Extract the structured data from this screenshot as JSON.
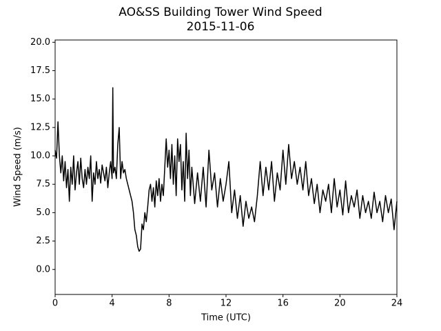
{
  "chart_data": {
    "type": "line",
    "title": "AO&SS Building Tower Wind Speed",
    "subtitle": "2015-11-06",
    "x_label": "Time (UTC)",
    "y_label": "Wind Speed (m/s)",
    "xlim": [
      0,
      24
    ],
    "xticks": [
      0,
      4,
      8,
      12,
      16,
      20,
      24
    ],
    "ylim": [
      -2.2,
      20.2
    ],
    "yticks": [
      {
        "value": 0,
        "label": "0.0"
      },
      2.5,
      {
        "value": 5,
        "label": "5.0"
      },
      7.5,
      {
        "value": 10,
        "label": "10.0"
      },
      12.5,
      {
        "value": 15,
        "label": "15.0"
      },
      17.5,
      {
        "value": 20,
        "label": "20.0"
      }
    ],
    "grid": false,
    "series": [
      {
        "color": "#000000",
        "x": [
          0.0,
          0.1,
          0.2,
          0.3,
          0.4,
          0.5,
          0.6,
          0.7,
          0.8,
          0.9,
          1.0,
          1.1,
          1.2,
          1.3,
          1.4,
          1.5,
          1.6,
          1.7,
          1.8,
          1.9,
          2.0,
          2.1,
          2.2,
          2.3,
          2.4,
          2.5,
          2.6,
          2.7,
          2.8,
          2.9,
          3.0,
          3.1,
          3.2,
          3.3,
          3.4,
          3.5,
          3.6,
          3.7,
          3.8,
          3.9,
          4.0,
          4.05,
          4.1,
          4.2,
          4.3,
          4.4,
          4.5,
          4.6,
          4.7,
          4.8,
          4.9,
          5.0,
          5.1,
          5.2,
          5.3,
          5.4,
          5.5,
          5.6,
          5.7,
          5.8,
          5.9,
          6.0,
          6.1,
          6.2,
          6.3,
          6.4,
          6.5,
          6.6,
          6.7,
          6.8,
          6.9,
          7.0,
          7.1,
          7.2,
          7.3,
          7.4,
          7.5,
          7.6,
          7.7,
          7.8,
          7.9,
          8.0,
          8.1,
          8.2,
          8.3,
          8.4,
          8.5,
          8.6,
          8.7,
          8.8,
          8.9,
          9.0,
          9.1,
          9.2,
          9.3,
          9.4,
          9.5,
          9.6,
          9.8,
          10.0,
          10.2,
          10.4,
          10.6,
          10.8,
          11.0,
          11.2,
          11.4,
          11.6,
          11.8,
          12.0,
          12.2,
          12.4,
          12.6,
          12.8,
          13.0,
          13.2,
          13.4,
          13.6,
          13.8,
          14.0,
          14.2,
          14.4,
          14.6,
          14.8,
          15.0,
          15.2,
          15.4,
          15.6,
          15.8,
          16.0,
          16.2,
          16.4,
          16.6,
          16.8,
          17.0,
          17.2,
          17.4,
          17.6,
          17.8,
          18.0,
          18.2,
          18.4,
          18.6,
          18.8,
          19.0,
          19.2,
          19.4,
          19.6,
          19.8,
          20.0,
          20.2,
          20.4,
          20.6,
          20.8,
          21.0,
          21.2,
          21.4,
          21.6,
          21.8,
          22.0,
          22.2,
          22.4,
          22.6,
          22.8,
          23.0,
          23.2,
          23.4,
          23.6,
          23.8,
          24.0
        ],
        "values": [
          10.5,
          9.8,
          13.0,
          10.0,
          8.5,
          10.0,
          7.8,
          9.5,
          7.2,
          8.8,
          6.0,
          9.0,
          7.5,
          10.0,
          7.0,
          8.5,
          9.5,
          7.5,
          9.8,
          8.0,
          7.2,
          8.8,
          7.5,
          9.0,
          8.0,
          10.0,
          6.0,
          8.5,
          7.5,
          9.5,
          8.0,
          8.8,
          7.6,
          9.2,
          8.5,
          7.8,
          9.0,
          7.2,
          8.5,
          9.5,
          8.0,
          16.0,
          8.5,
          9.0,
          8.0,
          11.0,
          12.5,
          8.0,
          9.5,
          8.5,
          8.8,
          8.0,
          7.5,
          7.0,
          6.5,
          6.0,
          5.0,
          3.5,
          3.0,
          2.0,
          1.6,
          1.8,
          4.0,
          3.5,
          5.0,
          4.2,
          5.5,
          7.0,
          7.5,
          6.0,
          7.2,
          5.5,
          7.8,
          6.5,
          8.0,
          6.0,
          7.5,
          6.5,
          9.0,
          11.5,
          9.0,
          10.5,
          8.0,
          11.0,
          7.5,
          10.0,
          6.5,
          11.5,
          9.5,
          11.0,
          7.0,
          9.5,
          6.0,
          12.0,
          8.0,
          10.5,
          6.5,
          9.0,
          5.8,
          8.5,
          6.0,
          9.0,
          5.5,
          10.5,
          7.0,
          8.5,
          5.5,
          8.0,
          6.0,
          7.5,
          9.5,
          5.0,
          7.0,
          4.5,
          6.5,
          3.8,
          6.0,
          4.5,
          5.5,
          4.2,
          6.5,
          9.5,
          6.5,
          9.0,
          7.0,
          9.5,
          6.0,
          8.5,
          7.0,
          10.5,
          7.5,
          11.0,
          8.0,
          9.5,
          7.5,
          9.0,
          7.0,
          9.5,
          6.5,
          8.0,
          5.8,
          7.5,
          5.0,
          7.0,
          6.0,
          7.5,
          5.0,
          8.0,
          5.5,
          7.0,
          4.8,
          7.8,
          5.0,
          6.5,
          5.5,
          7.0,
          4.5,
          6.5,
          5.0,
          6.0,
          4.5,
          6.8,
          5.0,
          6.0,
          4.2,
          6.5,
          5.0,
          6.2,
          3.5,
          6.0
        ]
      }
    ]
  }
}
